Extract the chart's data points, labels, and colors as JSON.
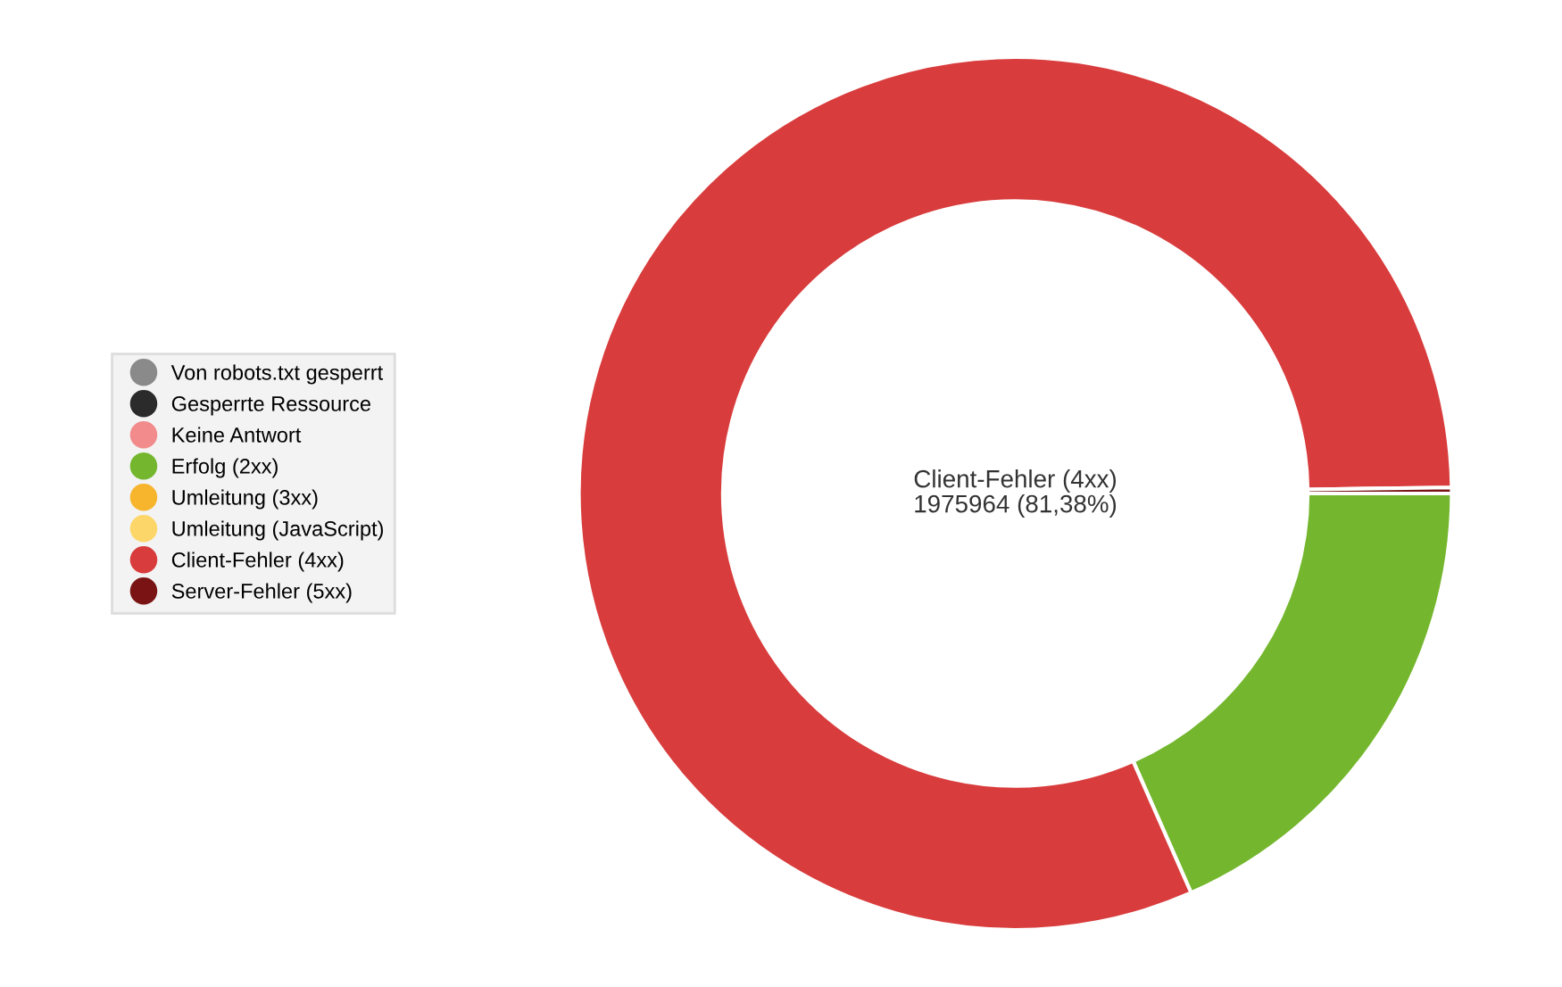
{
  "chart_data": {
    "type": "donut",
    "categories": [
      "Von robots.txt gesperrt",
      "Gesperrte Ressource",
      "Keine Antwort",
      "Erfolg (2xx)",
      "Umleitung (3xx)",
      "Umleitung (JavaScript)",
      "Client-Fehler (4xx)",
      "Server-Fehler (5xx)"
    ],
    "values": [
      0,
      0,
      0,
      18.4,
      0,
      0,
      81.38,
      0.22
    ],
    "colors": [
      "#8a8a8a",
      "#2b2b2b",
      "#f28b8b",
      "#74b72e",
      "#f6b52d",
      "#fdd66a",
      "#d93c3c",
      "#7a1414"
    ],
    "annotations": [
      "Client-Fehler (4xx)\n1975964 (81,38%)"
    ],
    "legend": "left"
  }
}
